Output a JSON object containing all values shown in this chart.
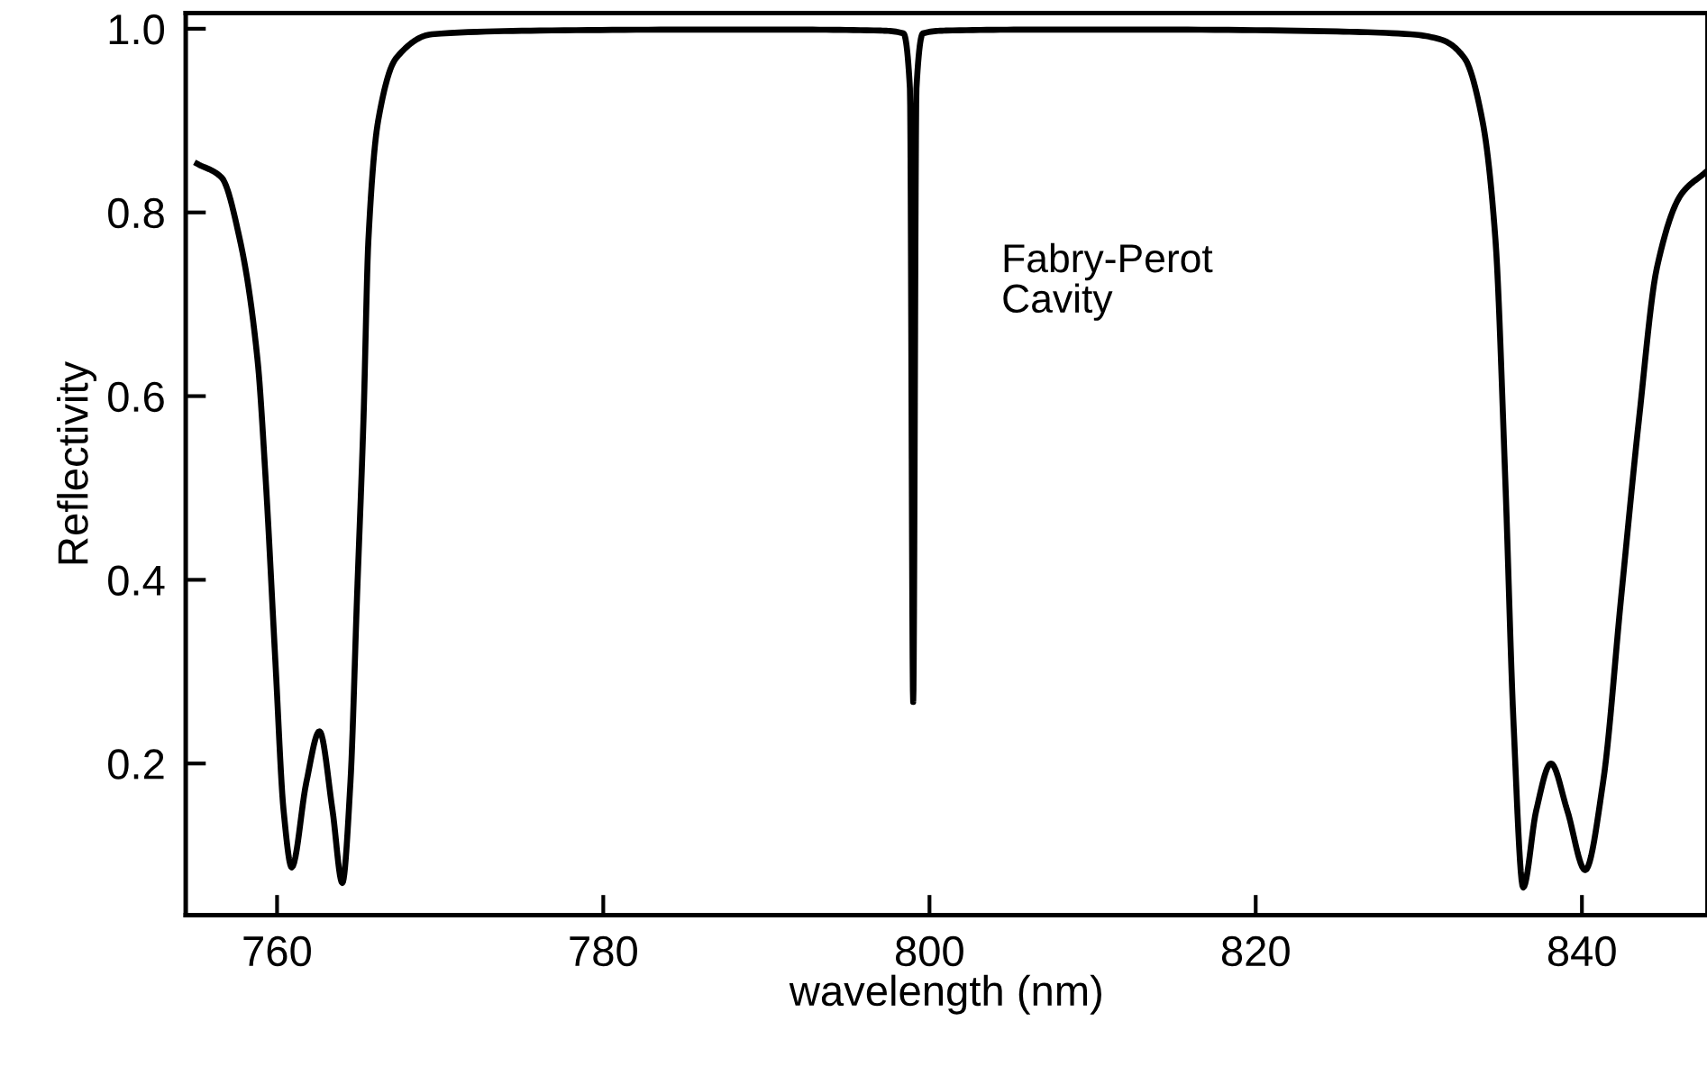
{
  "chart_data": {
    "type": "line",
    "xlabel": "wavelength (nm)",
    "ylabel": "Reflectivity",
    "annotations": [
      "Fabry-Perot\nCavity"
    ],
    "xlim": [
      754.4,
      847.7
    ],
    "ylim": [
      0.035,
      1.017
    ],
    "xticks": [
      760,
      780,
      800,
      820,
      840
    ],
    "yticks": [
      0.2,
      0.4,
      0.6,
      0.8,
      {
        "value": 1.0,
        "label": "1.0"
      }
    ],
    "grid": false,
    "marker": "none",
    "line_style": "solid",
    "series": [
      {
        "color": "#000000",
        "x": [
          755.1,
          756.6,
          757.7,
          758.8,
          759.3,
          759.9,
          760.4,
          760.9,
          761.8,
          762.6,
          763.4,
          764.0,
          764.5,
          764.9,
          765.3,
          765.6,
          766.2,
          767.3,
          769.5,
          776.1,
          785.0,
          792.0,
          797.0,
          798.4,
          798.8,
          799.0,
          799.2,
          799.6,
          801.0,
          806.0,
          815.0,
          825.0,
          829.5,
          831.4,
          832.8,
          833.9,
          834.7,
          835.3,
          835.8,
          836.4,
          837.2,
          838.1,
          839.1,
          840.2,
          841.3,
          842.4,
          843.5,
          844.6,
          846.1,
          847.6
        ],
        "values": [
          0.853,
          0.838,
          0.772,
          0.64,
          0.51,
          0.31,
          0.149,
          0.087,
          0.18,
          0.235,
          0.149,
          0.07,
          0.18,
          0.38,
          0.575,
          0.77,
          0.9,
          0.968,
          0.994,
          0.998,
          0.999,
          0.999,
          0.998,
          0.995,
          0.935,
          0.267,
          0.935,
          0.995,
          0.998,
          0.999,
          0.999,
          0.997,
          0.994,
          0.988,
          0.968,
          0.9,
          0.77,
          0.51,
          0.247,
          0.065,
          0.149,
          0.2,
          0.149,
          0.084,
          0.18,
          0.38,
          0.575,
          0.74,
          0.82,
          0.844
        ]
      }
    ]
  }
}
